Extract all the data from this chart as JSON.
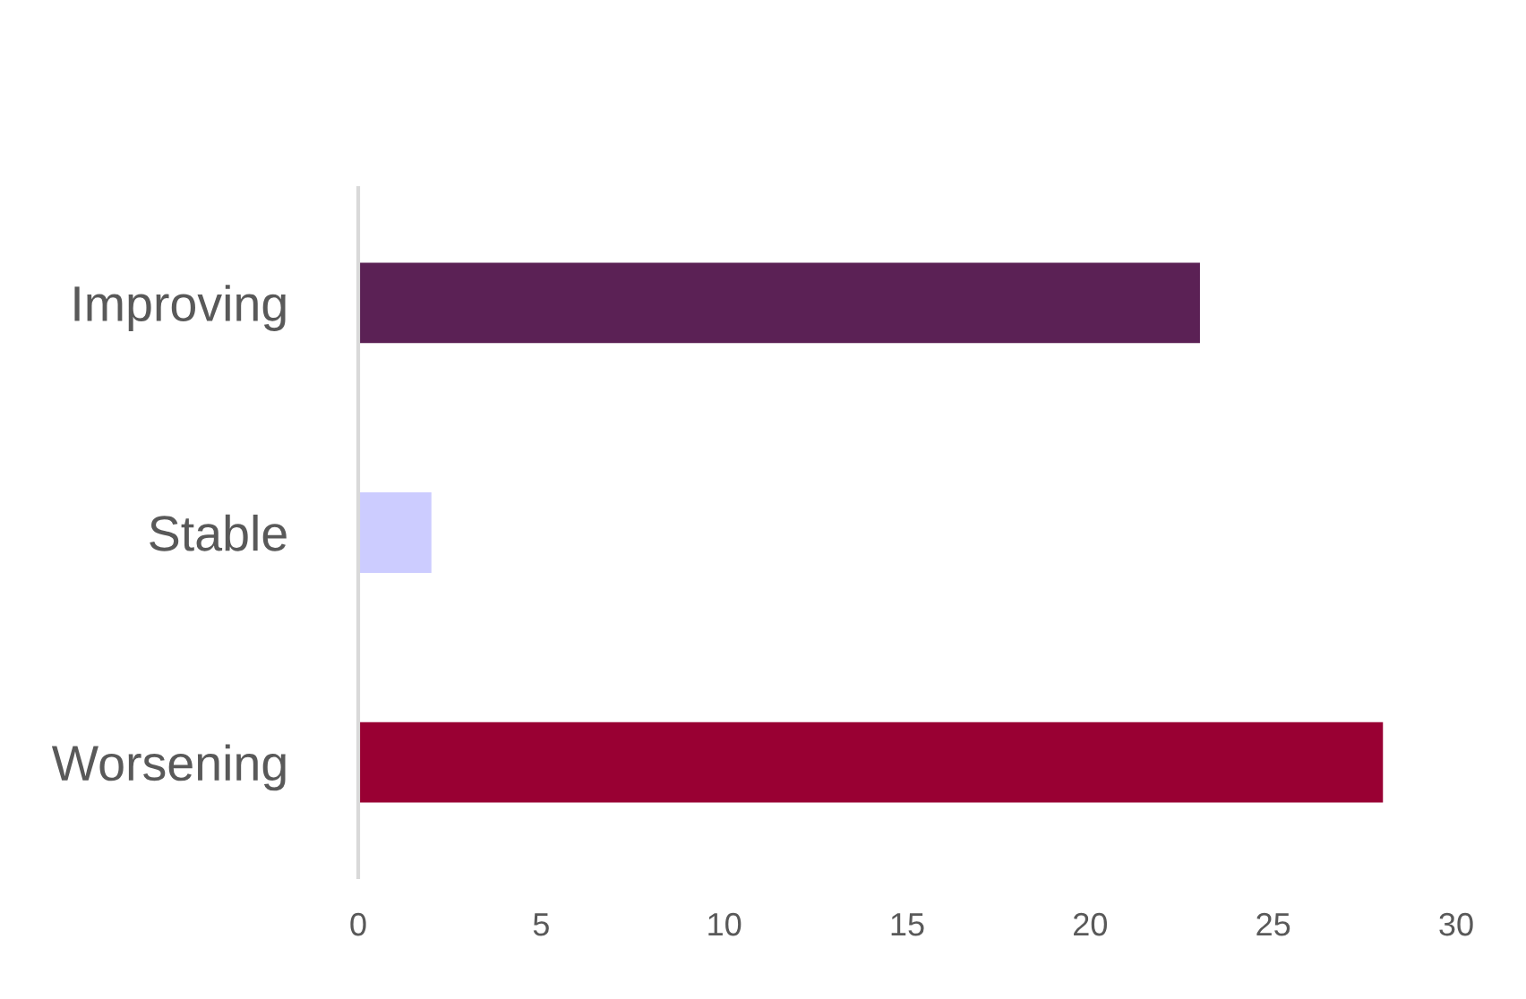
{
  "chart_data": {
    "type": "bar",
    "orientation": "horizontal",
    "categories": [
      "Improving",
      "Stable",
      "Worsening"
    ],
    "values": [
      23,
      2,
      28
    ],
    "colors": [
      "#5b2155",
      "#ccccff",
      "#990033"
    ],
    "xlim": [
      0,
      30
    ],
    "xticks": [
      0,
      5,
      10,
      15,
      20,
      25,
      30
    ],
    "grid": false
  }
}
